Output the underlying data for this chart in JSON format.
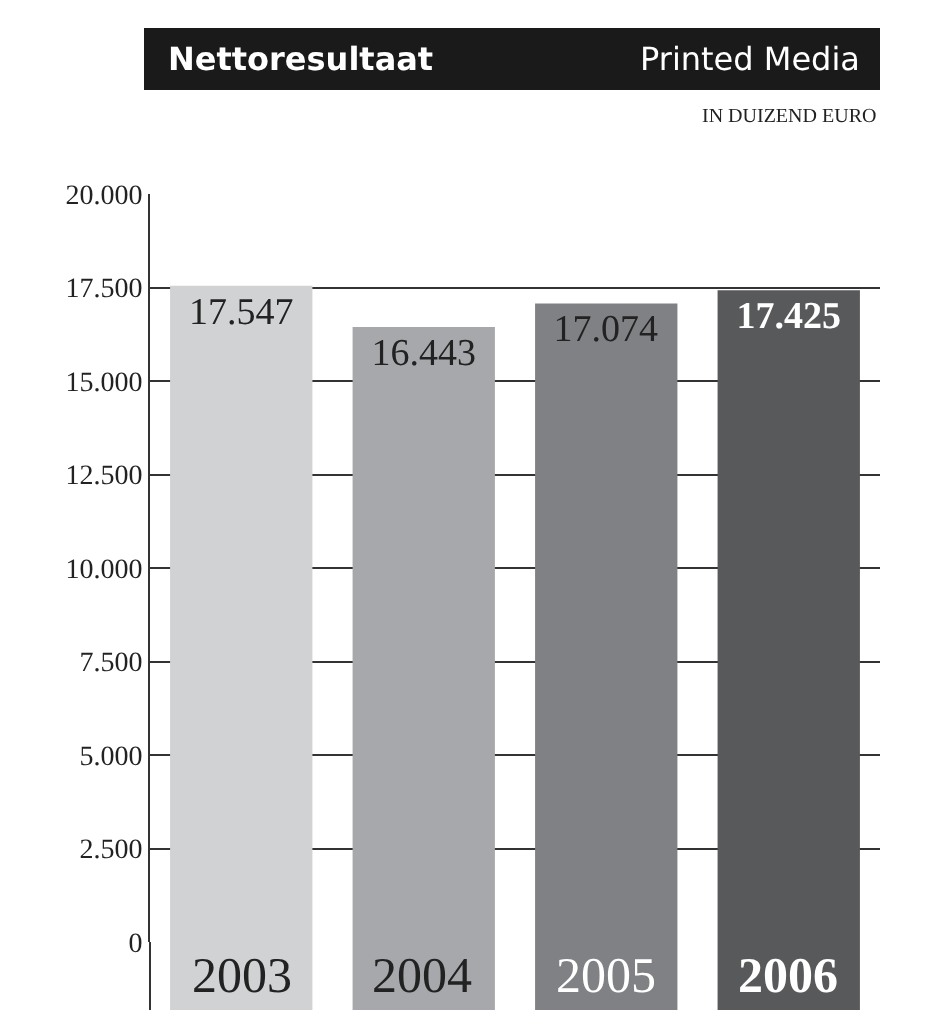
{
  "chart_data": {
    "type": "bar",
    "title": "Nettoresultaat",
    "subtitle": "Printed Media",
    "annotations": [
      "IN DUIZEND EURO"
    ],
    "categories": [
      "2003",
      "2004",
      "2005",
      "2006"
    ],
    "values": [
      17547,
      16443,
      17074,
      17425
    ],
    "colors": [
      "#d1d2d4",
      "#a7a8ab",
      "#808184",
      "#58595b"
    ],
    "value_labels": [
      "17.547",
      "16.443",
      "17.074",
      "17.425"
    ],
    "ylim": [
      0,
      20000
    ],
    "yticks": [
      {
        "value": 0,
        "label": "0"
      },
      {
        "value": 2500,
        "label": "2.500"
      },
      {
        "value": 5000,
        "label": "5.000"
      },
      {
        "value": 7500,
        "label": "7.500"
      },
      {
        "value": 10000,
        "label": "10.000"
      },
      {
        "value": 12500,
        "label": "12.500"
      },
      {
        "value": 15000,
        "label": "15.000"
      },
      {
        "value": 17500,
        "label": "17.500"
      },
      {
        "value": 20000,
        "label": "20.000"
      }
    ],
    "grid": "y"
  }
}
